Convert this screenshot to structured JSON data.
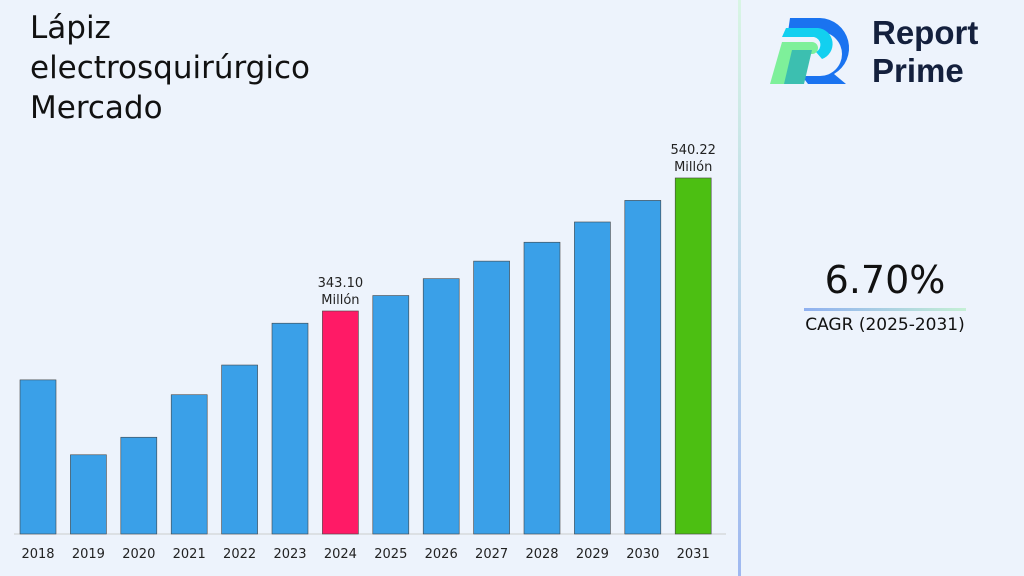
{
  "title": "Lápiz electrosquirúrgico Mercado",
  "logo": {
    "line1": "Report",
    "line2": "Prime"
  },
  "cagr": {
    "value": "6.70%",
    "label": "CAGR (2025-2031)"
  },
  "chart_data": {
    "type": "bar",
    "categories": [
      "2018",
      "2019",
      "2020",
      "2021",
      "2022",
      "2023",
      "2024",
      "2025",
      "2026",
      "2027",
      "2028",
      "2029",
      "2030",
      "2031"
    ],
    "values": [
      241,
      130,
      156,
      219,
      263,
      325,
      343.1,
      366,
      391,
      417,
      445,
      475,
      507,
      540.22
    ],
    "colors": {
      "default": "#3aa0e8",
      "highlight_2024": "#ff1a66",
      "highlight_2031": "#4cbf12"
    },
    "data_labels": [
      {
        "category": "2024",
        "value": "343.10",
        "unit": "Millón"
      },
      {
        "category": "2031",
        "value": "540.22",
        "unit": "Millón"
      }
    ],
    "grid": false,
    "xlabel": "",
    "ylabel": ""
  }
}
